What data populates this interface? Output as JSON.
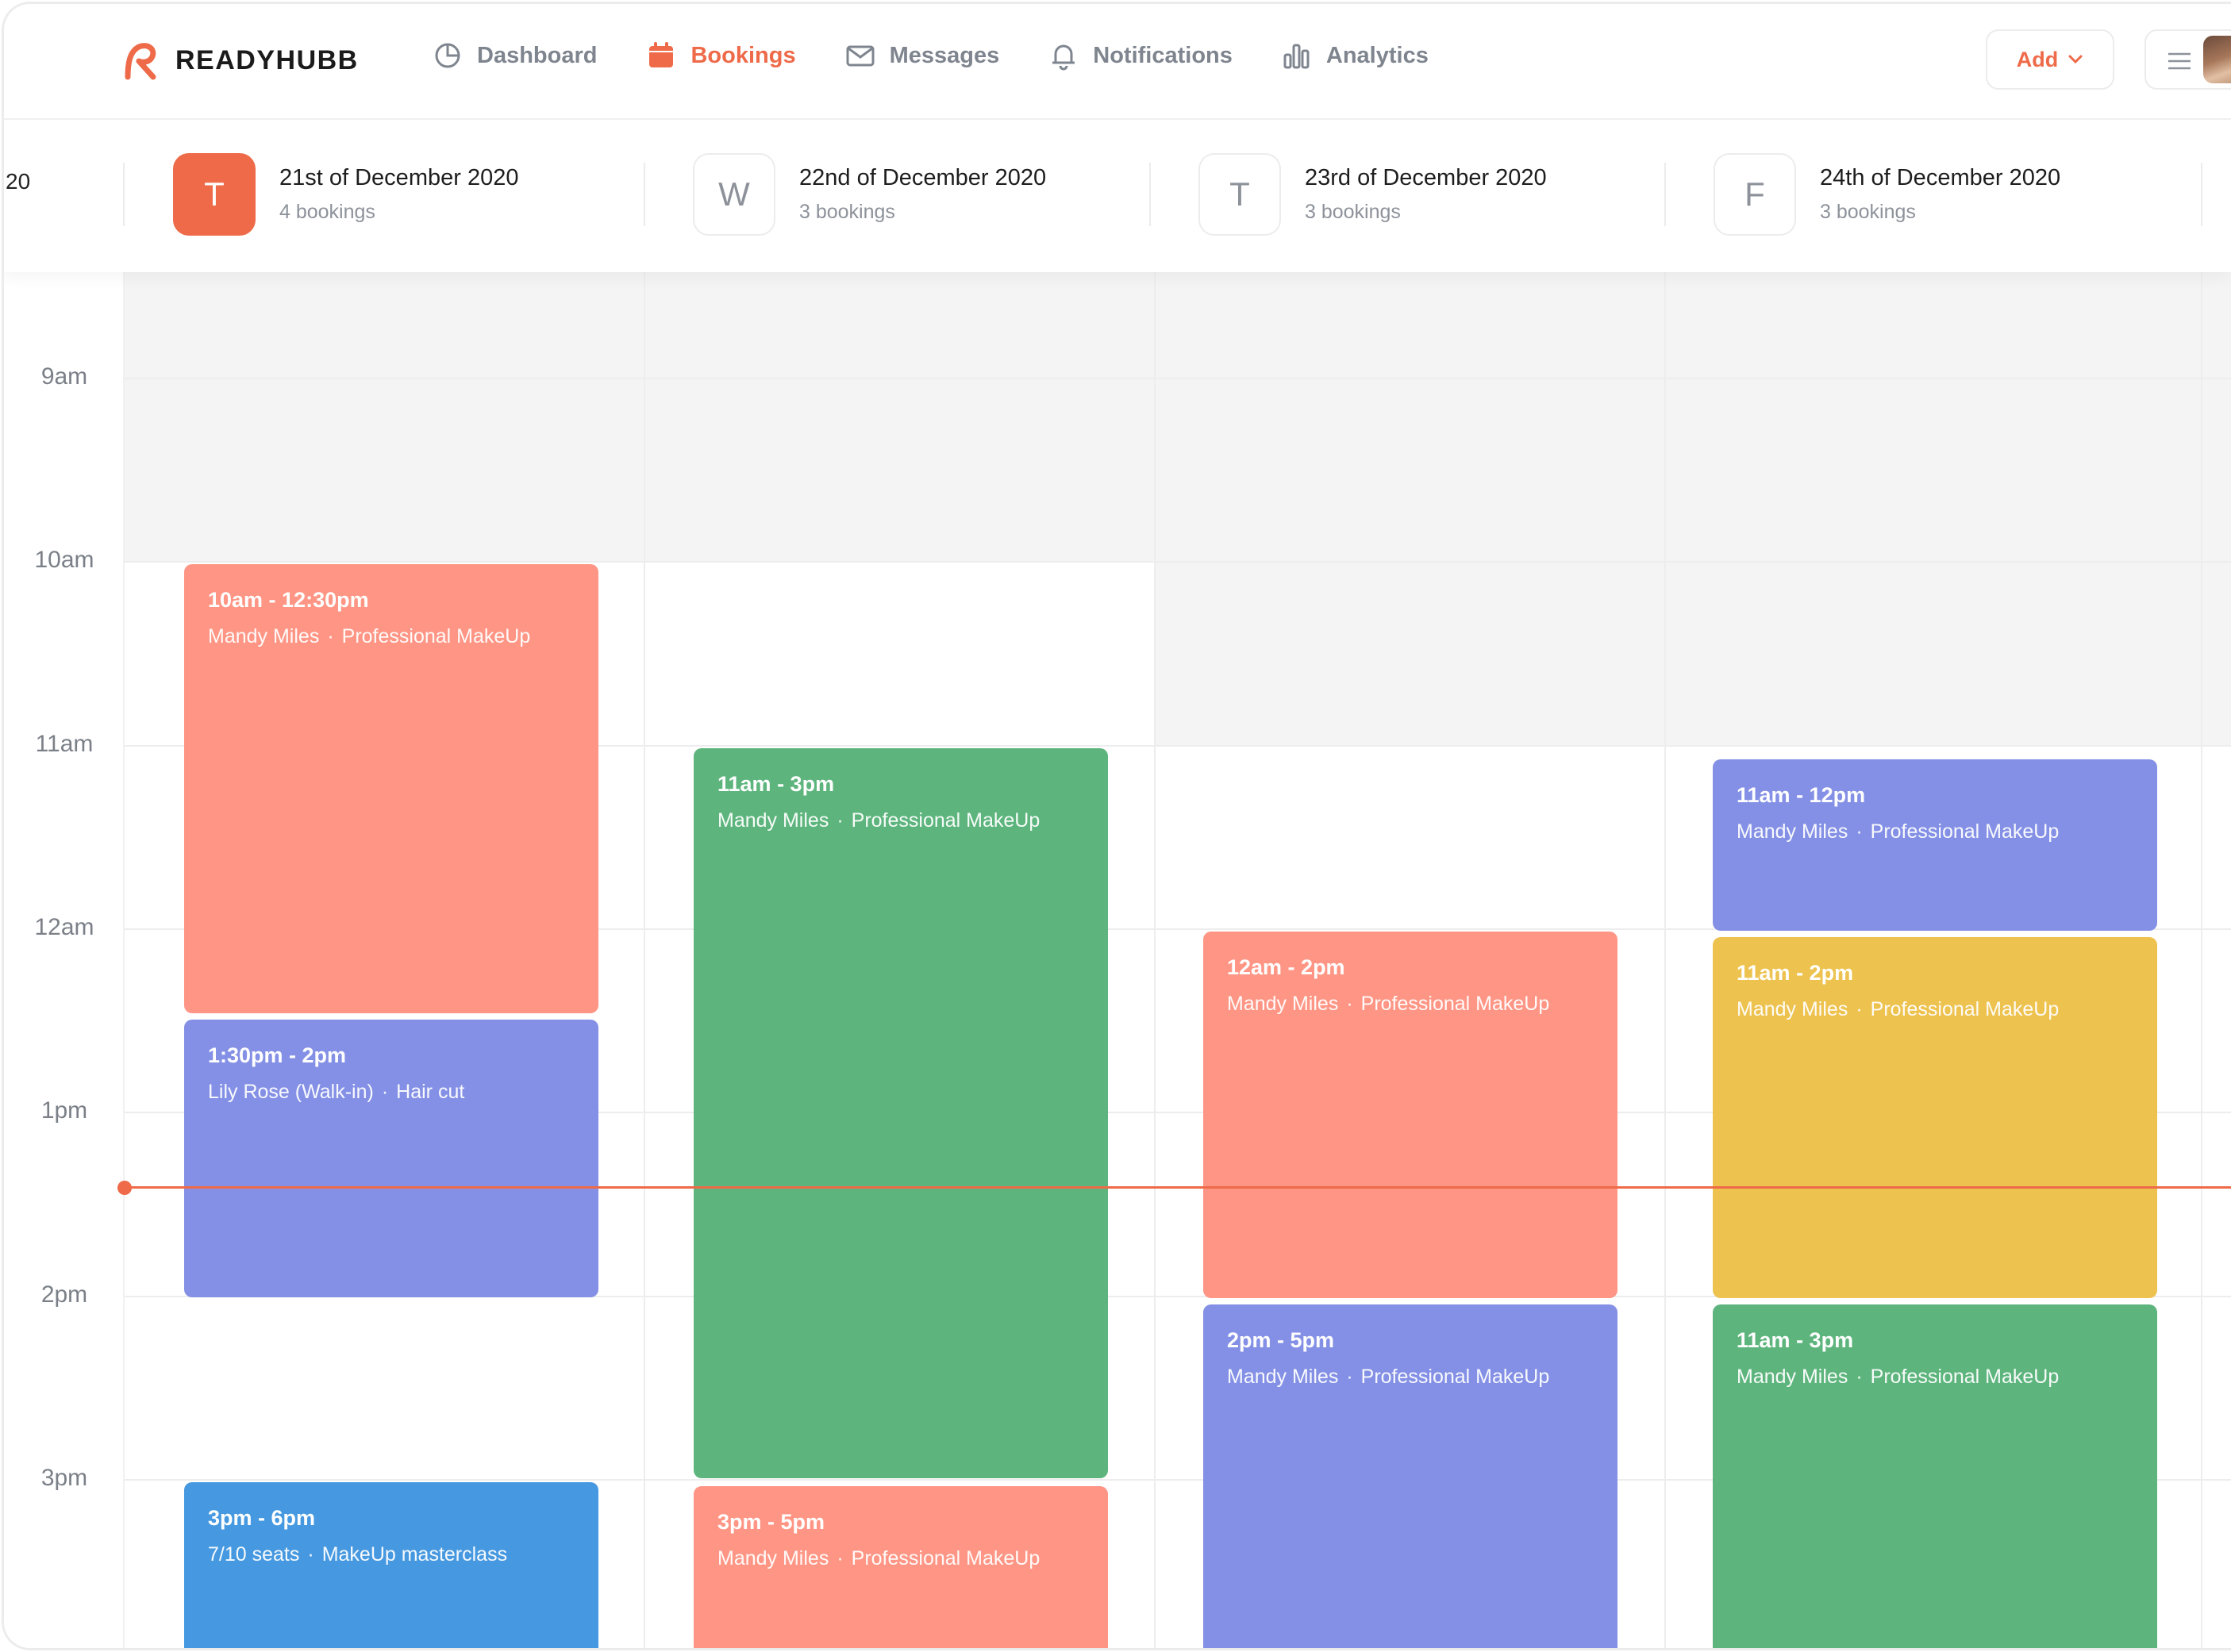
{
  "brand": {
    "name": "READYHUBB",
    "accent": "#ee6a49"
  },
  "nav": {
    "items": [
      {
        "label": "Dashboard",
        "icon": "pie-chart-icon",
        "active": false
      },
      {
        "label": "Bookings",
        "icon": "calendar-icon",
        "active": true
      },
      {
        "label": "Messages",
        "icon": "mail-icon",
        "active": false
      },
      {
        "label": "Notifications",
        "icon": "bell-icon",
        "active": false
      },
      {
        "label": "Analytics",
        "icon": "bar-chart-icon",
        "active": false
      }
    ],
    "add_label": "Add"
  },
  "days": {
    "prev_fragment": "20",
    "list": [
      {
        "letter": "T",
        "title": "21st of December 2020",
        "sub": "4 bookings",
        "active": true
      },
      {
        "letter": "W",
        "title": "22nd of December 2020",
        "sub": "3 bookings",
        "active": false
      },
      {
        "letter": "T",
        "title": "23rd of December 2020",
        "sub": "3 bookings",
        "active": false
      },
      {
        "letter": "F",
        "title": "24th of December 2020",
        "sub": "3 bookings",
        "active": false
      }
    ]
  },
  "times": [
    "9am",
    "10am",
    "11am",
    "12am",
    "1pm",
    "2pm",
    "3pm"
  ],
  "events": [
    {
      "day": 0,
      "time": "10am - 12:30pm",
      "who": "Mandy Miles",
      "what": "Professional MakeUp",
      "color": "#ff9685"
    },
    {
      "day": 0,
      "time": "1:30pm - 2pm",
      "who": "Lily Rose (Walk-in)",
      "what": "Hair cut",
      "color": "#8490e5"
    },
    {
      "day": 0,
      "time": "3pm - 6pm",
      "who": "7/10 seats",
      "what": "MakeUp masterclass",
      "color": "#4699e0"
    },
    {
      "day": 1,
      "time": "11am - 3pm",
      "who": "Mandy Miles",
      "what": "Professional MakeUp",
      "color": "#5db57d"
    },
    {
      "day": 1,
      "time": "3pm - 5pm",
      "who": "Mandy Miles",
      "what": "Professional MakeUp",
      "color": "#ff9685"
    },
    {
      "day": 2,
      "time": "12am - 2pm",
      "who": "Mandy Miles",
      "what": "Professional MakeUp",
      "color": "#ff9685"
    },
    {
      "day": 2,
      "time": "2pm - 5pm",
      "who": "Mandy Miles",
      "what": "Professional MakeUp",
      "color": "#8490e5"
    },
    {
      "day": 3,
      "time": "11am - 12pm",
      "who": "Mandy Miles",
      "what": "Professional MakeUp",
      "color": "#8490e5"
    },
    {
      "day": 3,
      "time": "11am - 2pm",
      "who": "Mandy Miles",
      "what": "Professional MakeUp",
      "color": "#edc24f"
    },
    {
      "day": 3,
      "time": "11am - 3pm",
      "who": "Mandy Miles",
      "what": "Professional MakeUp",
      "color": "#5db57d"
    }
  ]
}
